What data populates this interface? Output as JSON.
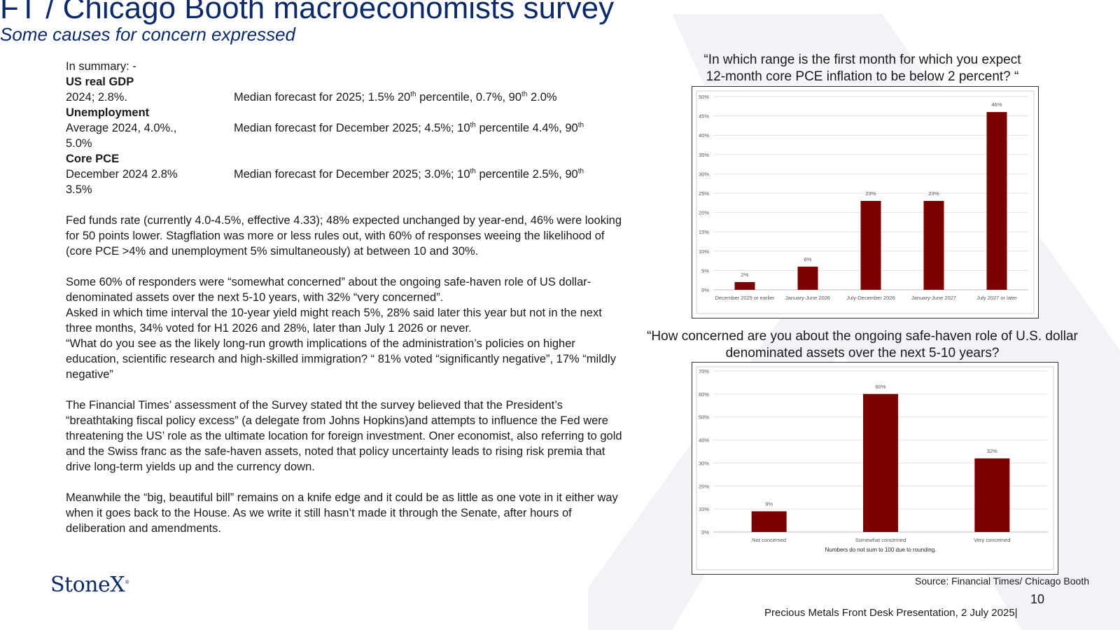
{
  "slide": {
    "title": "FT / Chicago Booth macroeconomists survey",
    "subtitle": "Some causes for concern expressed",
    "page_number": "10",
    "footer": "Precious Metals Front Desk Presentation, 2 July 2025|",
    "source": "Source: Financial Times/ Chicago Booth",
    "logo_text": "StoneX",
    "logo_mark": "®"
  },
  "summary": {
    "intro": "In summary: -",
    "gdp_head": "US real GDP",
    "gdp_left": "2024; 2.8%.",
    "gdp_r1": "Median forecast for 2025; 1.5% 20",
    "gdp_r2": " percentile, 0.7%, 90",
    "gdp_r3": " 2.0%",
    "unemp_head": "Unemployment",
    "unemp_left1": "Average 2024, 4.0%.,",
    "unemp_left2": "5.0%",
    "unemp_r1": "Median forecast for December 2025; 4.5%; 10",
    "unemp_r2": " percentile 4.4%, 90",
    "pce_head": "Core PCE",
    "pce_left1": "December 2024  2.8%",
    "pce_left2": "3.5%",
    "pce_r1": "Median forecast for December 2025; 3.0%; 10",
    "pce_r2": " percentile 2.5%, 90",
    "th": "th",
    "para_fed": "Fed funds rate (currently 4.0-4.5%, effective 4.33); 48% expected unchanged by year-end, 46% were looking for 50 points lower.  Stagflation was more or less rules out, with 60% of responses weeing the likelihood of (core PCE >4% and unemployment 5% simultaneously) at between 10 and 30%.",
    "para_dollar": "Some 60% of responders were “somewhat concerned” about the ongoing safe-haven role of US dollar-denominated assets over the next 5-10 years, with 32% “very concerned”.",
    "para_yield": "Asked in which time interval the 10-year yield might reach 5%, 28% said later this year but not in the next three months, 34% voted for H1 2026 and 28%, later than July 1 2026 or never.",
    "para_growth": "“What do you see as the likely long-run growth implications of the administration’s policies on higher education, scientific research and high-skilled immigration? “ 81% voted “significantly negative”, 17% “mildly negative”",
    "para_ft": "The Financial Times’ assessment of the Survey stated tht the survey believed that the President’s “breathtaking fiscal policy excess” (a delegate from Johns Hopkins)and attempts to influence the Fed were threatening the US’ role as the ultimate location for foreign investment.   Oner economist, also referring to gold and the Swiss franc as the safe-haven assets, noted that policy uncertainty leads to rising risk premia that drive long-term yields up and the currency down.",
    "para_bill": "Meanwhile the  “big, beautiful bill” remains on a knife edge and it could be as little as one vote in it either way when it goes back to the House.  As we write it still hasn’t made it through the Senate, after hours of deliberation and amendments."
  },
  "chart_data": [
    {
      "type": "bar",
      "title": "“In which range is the first month for which you expect 12-month core PCE inflation to be below 2 percent? “",
      "categories": [
        "December 2025 or earlier",
        "January-June 2026",
        "July-December 2026",
        "January-June 2027",
        "July 2027 or later"
      ],
      "values": [
        2,
        6,
        23,
        23,
        46
      ],
      "data_labels": [
        "2%",
        "6%",
        "23%",
        "23%",
        "46%"
      ],
      "yticks": [
        "0%",
        "5%",
        "10%",
        "15%",
        "20%",
        "25%",
        "30%",
        "35%",
        "40%",
        "45%",
        "50%"
      ],
      "ylim": [
        0,
        50
      ],
      "grid": true,
      "bar_color": "#7b0000",
      "note": ""
    },
    {
      "type": "bar",
      "title": "“How concerned are you about the ongoing safe-haven role of U.S. dollar denominated assets over the next 5-10 years?",
      "categories": [
        "Not concerned",
        "Somewhat concerned",
        "Very concerned"
      ],
      "values": [
        9,
        60,
        32
      ],
      "data_labels": [
        "9%",
        "60%",
        "32%"
      ],
      "yticks": [
        "0%",
        "10%",
        "20%",
        "30%",
        "40%",
        "50%",
        "60%",
        "70%"
      ],
      "ylim": [
        0,
        70
      ],
      "grid": true,
      "bar_color": "#7b0000",
      "note": "Numbers do not sum to 100 due to rounding."
    }
  ]
}
